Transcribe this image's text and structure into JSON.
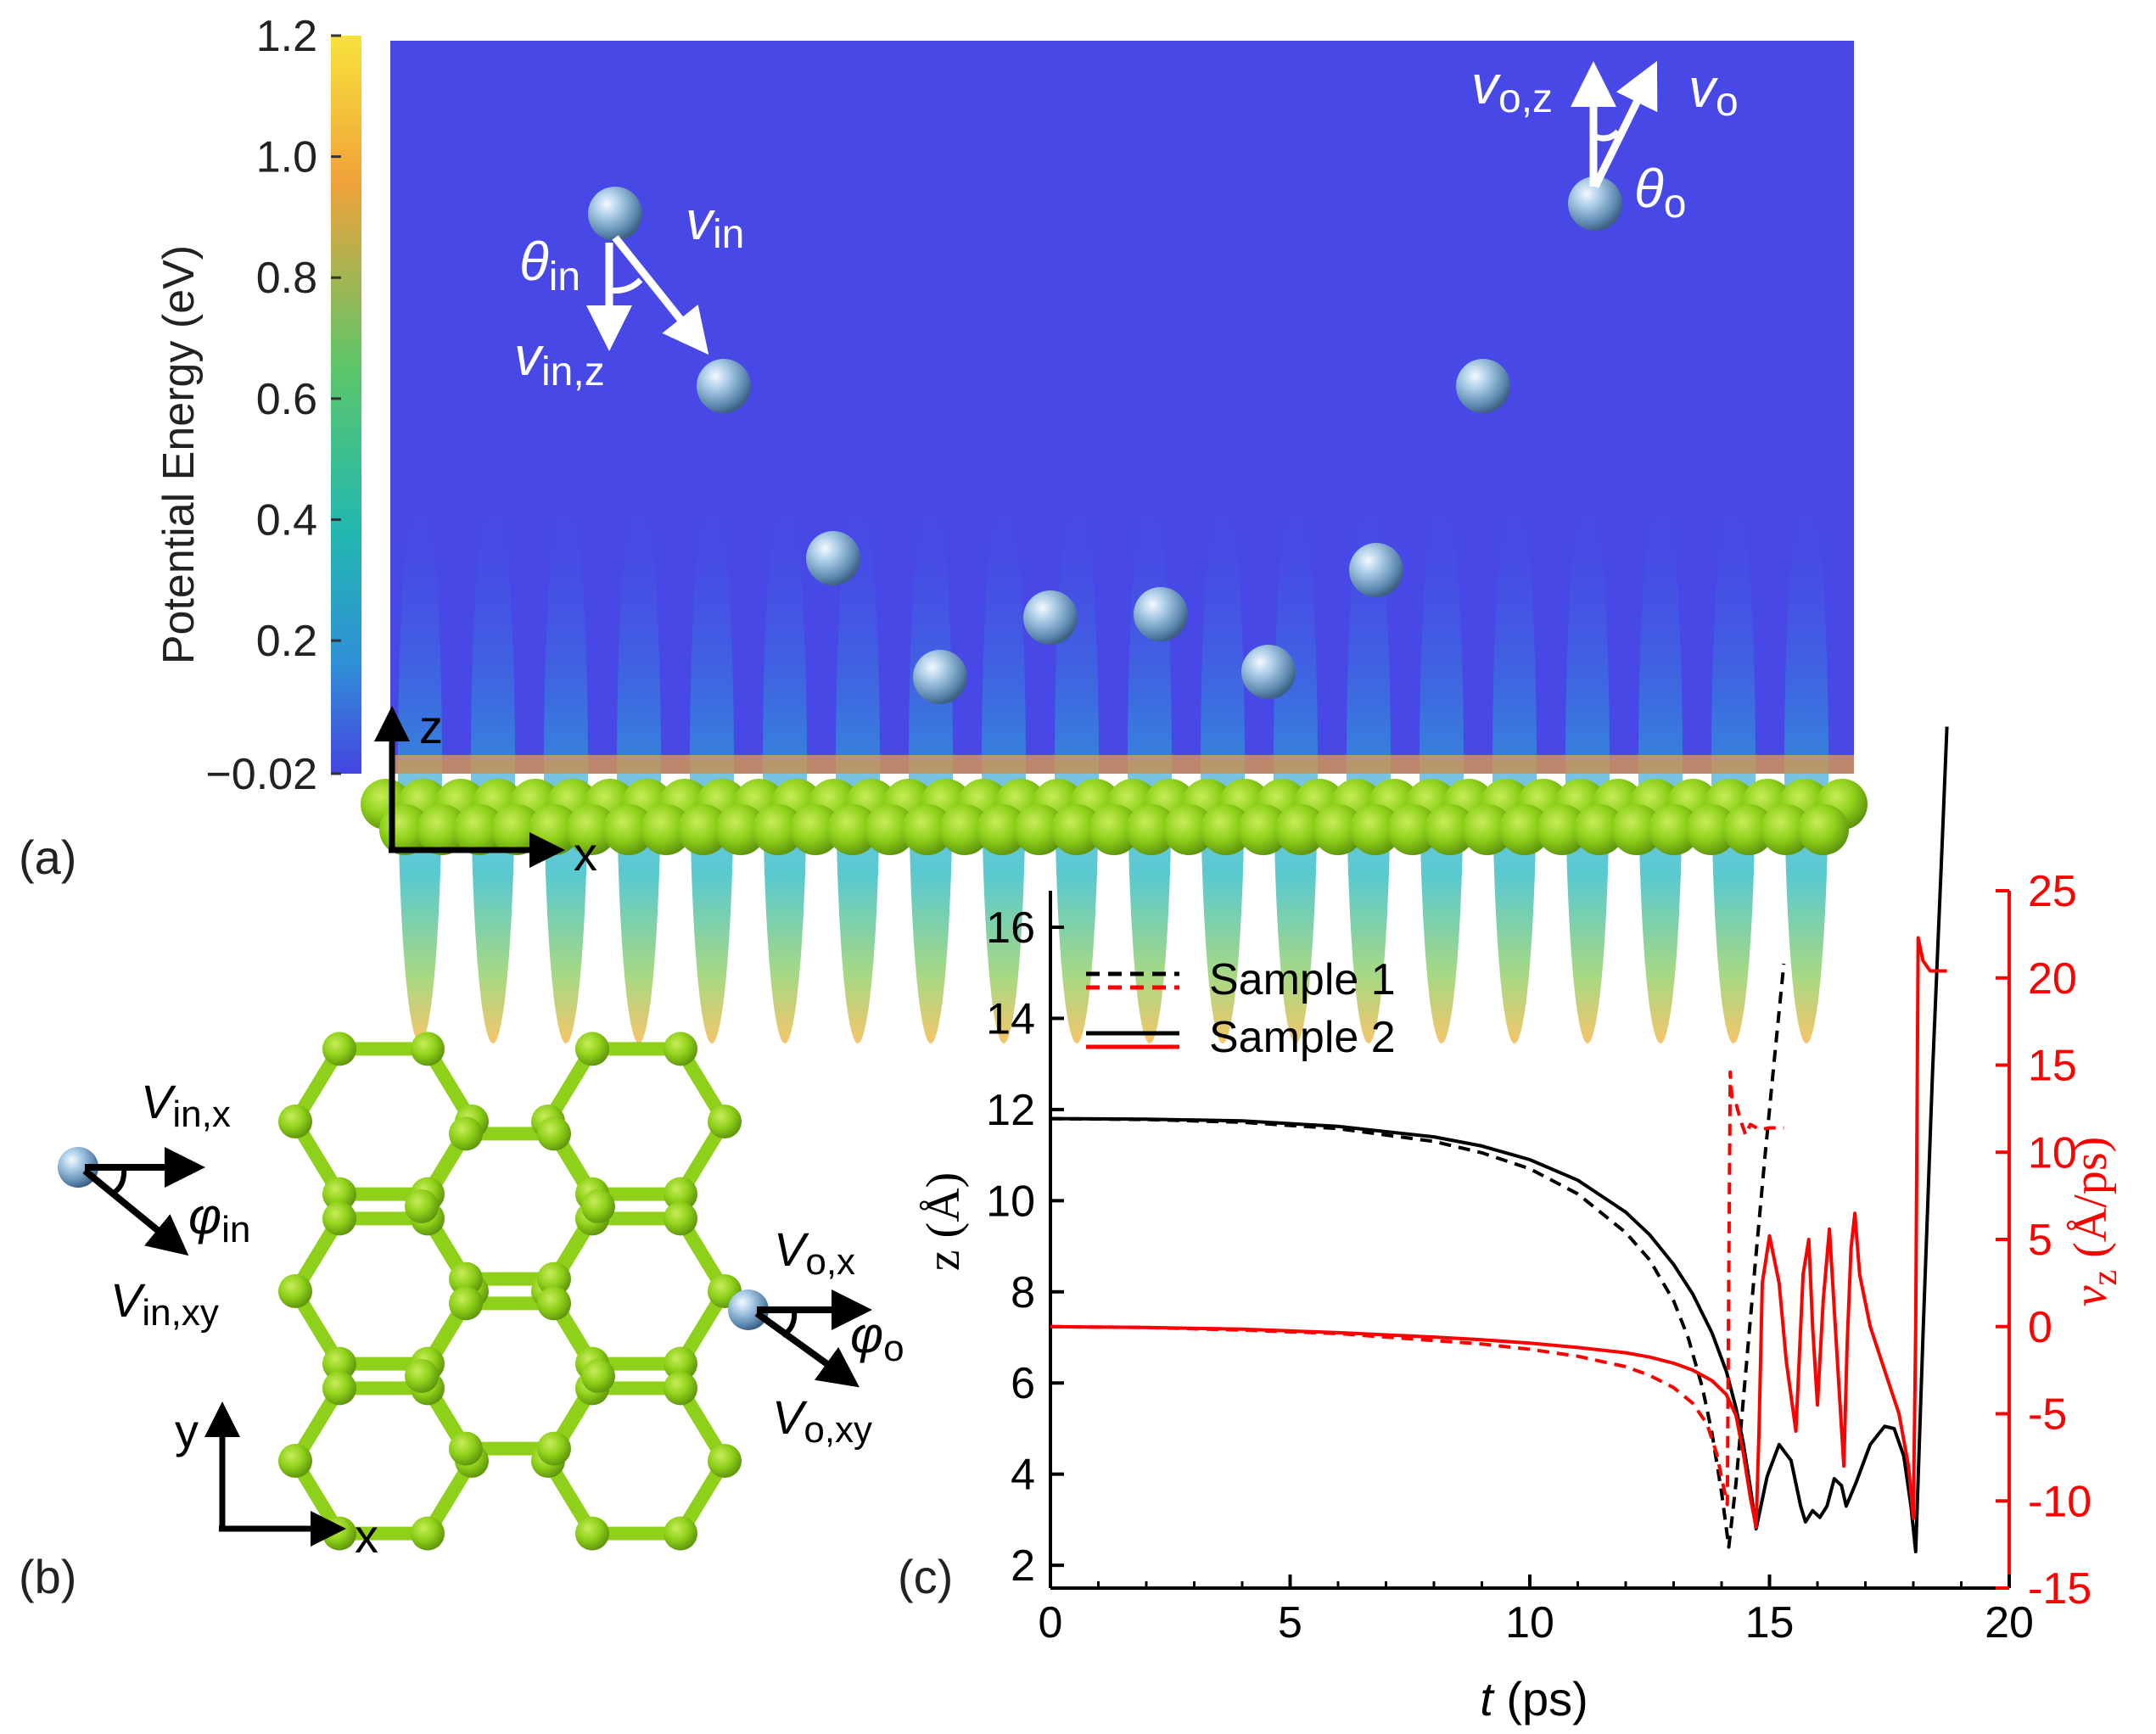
{
  "panel_a": {
    "label": "(a)",
    "colorbar": {
      "title": "Potential Energy (eV)",
      "ticks": [
        "1.2",
        "1.0",
        "0.8",
        "0.6",
        "0.4",
        "0.2",
        "−0.02"
      ],
      "tick_values": [
        1.2,
        1.0,
        0.8,
        0.6,
        0.4,
        0.2,
        -0.02
      ],
      "range": [
        -0.02,
        1.2
      ],
      "colors": [
        "#4545e0",
        "#2f8fd6",
        "#22b8b0",
        "#5cc66a",
        "#f0a23a",
        "#f7e23a"
      ]
    },
    "axes": {
      "z": "z",
      "x": "x"
    },
    "labels": {
      "v_in": "v",
      "v_in_sub": "in",
      "theta_in": "θ",
      "theta_in_sub": "in",
      "v_in_z": "v",
      "v_in_z_sub": "in,z",
      "v_o_z": "v",
      "v_o_z_sub": "o,z",
      "v_o": "v",
      "v_o_sub": "o",
      "theta_o": "θ",
      "theta_o_sub": "o"
    },
    "background_color": "#4848e6",
    "atom_color": "#8fd11a"
  },
  "panel_b": {
    "label": "(b)",
    "labels": {
      "v_in_x": "V",
      "v_in_x_sub": "in,x",
      "phi_in": "φ",
      "phi_in_sub": "in",
      "v_in_xy": "V",
      "v_in_xy_sub": "in,xy",
      "v_o_x": "V",
      "v_o_x_sub": "o,x",
      "phi_o": "φ",
      "phi_o_sub": "o",
      "v_o_xy": "V",
      "v_o_xy_sub": "o,xy"
    },
    "axes": {
      "y": "y",
      "x": "x"
    }
  },
  "chart_data": {
    "type": "line",
    "label": "(c)",
    "xlabel_italic": "t",
    "xlabel_rest": " (ps)",
    "ylabel_left": "z (Å)",
    "ylabel_right": "v",
    "ylabel_right_sub": "z",
    "ylabel_right_rest": " (Å/ps)",
    "xlim": [
      0,
      20
    ],
    "ylim_left": [
      1.5,
      16.8
    ],
    "ylim_right": [
      -15,
      25
    ],
    "xticks": [
      "0",
      "5",
      "10",
      "15",
      "20"
    ],
    "xtick_values": [
      0,
      5,
      10,
      15,
      20
    ],
    "yticks_left": [
      "2",
      "4",
      "6",
      "8",
      "10",
      "12",
      "14",
      "16"
    ],
    "ytick_values_left": [
      2,
      4,
      6,
      8,
      10,
      12,
      14,
      16
    ],
    "yticks_right": [
      "-15",
      "-10",
      "-5",
      "0",
      "5",
      "10",
      "15",
      "20",
      "25"
    ],
    "ytick_values_right": [
      -15,
      -10,
      -5,
      0,
      5,
      10,
      15,
      20,
      25
    ],
    "right_axis_color": "#ff0000",
    "legend": [
      {
        "name": "Sample 1",
        "style": "dashed"
      },
      {
        "name": "Sample 2",
        "style": "solid"
      }
    ],
    "series": [
      {
        "name": "Sample 1 z",
        "axis": "left",
        "color": "#000000",
        "style": "dashed",
        "x": [
          0,
          2,
          4,
          6,
          8,
          9,
          10,
          11,
          12,
          12.5,
          13,
          13.3,
          13.6,
          13.8,
          14.0,
          14.15,
          14.3,
          14.5,
          14.7,
          14.9,
          15.1,
          15.3
        ],
        "y": [
          11.8,
          11.78,
          11.72,
          11.58,
          11.3,
          11.05,
          10.7,
          10.15,
          9.3,
          8.7,
          7.8,
          7.0,
          5.9,
          4.9,
          3.6,
          2.4,
          3.8,
          6.2,
          8.6,
          10.9,
          13.1,
          15.2
        ]
      },
      {
        "name": "Sample 2 z",
        "axis": "left",
        "color": "#000000",
        "style": "solid",
        "x": [
          0,
          2,
          4,
          6,
          8,
          9,
          10,
          11,
          12,
          12.5,
          13,
          13.4,
          13.8,
          14.1,
          14.3,
          14.45,
          14.6,
          14.72,
          14.8,
          14.95,
          15.2,
          15.45,
          15.65,
          15.75,
          15.9,
          16.05,
          16.2,
          16.35,
          16.5,
          16.6,
          16.8,
          17.1,
          17.4,
          17.6,
          17.8,
          17.95,
          18.05,
          18.2,
          18.4,
          18.6,
          18.7
        ],
        "y": [
          11.8,
          11.79,
          11.75,
          11.63,
          11.4,
          11.2,
          10.9,
          10.45,
          9.75,
          9.25,
          8.6,
          7.95,
          7.1,
          6.25,
          5.45,
          4.7,
          3.7,
          2.8,
          3.2,
          3.95,
          4.65,
          4.3,
          3.3,
          2.95,
          3.2,
          3.05,
          3.3,
          3.9,
          3.75,
          3.3,
          3.8,
          4.65,
          5.05,
          5.0,
          4.4,
          3.3,
          2.3,
          7.0,
          12.8,
          17.8,
          20.4
        ]
      },
      {
        "name": "Sample 1 vz",
        "axis": "right",
        "color": "#ff0000",
        "style": "dashed",
        "x": [
          0,
          2,
          4,
          6,
          8,
          9,
          10,
          11,
          12,
          12.5,
          13,
          13.4,
          13.7,
          13.9,
          14.05,
          14.12,
          14.15,
          14.18,
          14.22,
          14.3,
          14.4,
          14.5,
          14.6,
          14.8,
          15.0,
          15.3
        ],
        "y": [
          0,
          -0.05,
          -0.2,
          -0.4,
          -0.8,
          -1.0,
          -1.3,
          -1.7,
          -2.3,
          -2.8,
          -3.5,
          -4.4,
          -5.6,
          -7.3,
          -9.3,
          -10.2,
          3.0,
          14.6,
          13.0,
          12.8,
          11.8,
          11.0,
          11.6,
          11.3,
          11.4,
          11.4
        ]
      },
      {
        "name": "Sample 2 vz",
        "axis": "right",
        "color": "#ff0000",
        "style": "solid",
        "x": [
          0,
          2,
          4,
          6,
          8,
          9,
          10,
          11,
          12,
          12.5,
          13,
          13.4,
          13.8,
          14.1,
          14.3,
          14.45,
          14.6,
          14.72,
          14.78,
          14.85,
          15.0,
          15.2,
          15.35,
          15.55,
          15.7,
          15.82,
          15.9,
          16.0,
          16.12,
          16.25,
          16.35,
          16.45,
          16.55,
          16.62,
          16.7,
          16.78,
          16.88,
          17.1,
          17.4,
          17.7,
          17.9,
          18.0,
          18.05,
          18.1,
          18.2,
          18.35,
          18.6,
          18.7
        ],
        "y": [
          0,
          -0.05,
          -0.15,
          -0.35,
          -0.6,
          -0.75,
          -0.95,
          -1.2,
          -1.5,
          -1.75,
          -2.1,
          -2.5,
          -3.1,
          -3.9,
          -5.1,
          -7.2,
          -9.8,
          -11.5,
          -6.0,
          2.5,
          5.2,
          2.5,
          -2.0,
          -6.0,
          3.0,
          5.0,
          0.0,
          -4.5,
          1.5,
          5.6,
          1.0,
          -3.5,
          -8.0,
          -1.0,
          4.5,
          6.5,
          3.0,
          0.0,
          -2.5,
          -5.0,
          -8.0,
          -11.0,
          0.0,
          22.3,
          21.0,
          20.4,
          20.4,
          20.4
        ]
      }
    ]
  }
}
